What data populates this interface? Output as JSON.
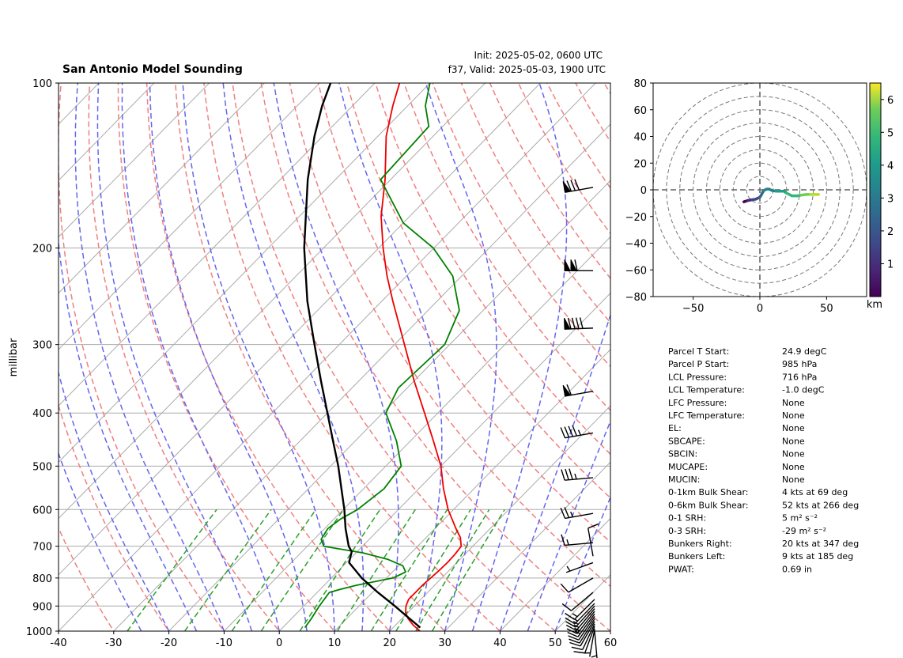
{
  "title": "San Antonio Model Sounding",
  "init": "Init: 2025-05-02, 0600 UTC",
  "valid": "f37, Valid: 2025-05-03, 1900 UTC",
  "colors": {
    "temperature": "#ee0000",
    "dewpoint": "#008000",
    "parcel": "#000000",
    "dry_adiabat": "#f08080",
    "moist_adiabat": "#6666ee",
    "mixing_ratio": "#2ca02c",
    "isotherm": "#aaaaaa",
    "zero_isotherm": "#8a2be2"
  },
  "chart_data": [
    {
      "type": "line",
      "name": "skew-t",
      "ylabel": "millibar",
      "xlim": [
        -40,
        60
      ],
      "ylim": [
        1000,
        100
      ],
      "x_ticks": [
        -40,
        -30,
        -20,
        -10,
        0,
        10,
        20,
        30,
        40,
        50,
        60
      ],
      "y_ticks": [
        1000,
        900,
        800,
        700,
        600,
        500,
        400,
        300,
        200,
        100
      ],
      "series": [
        {
          "name": "temperature",
          "points": [
            [
              1000,
              25.5
            ],
            [
              975,
              23.2
            ],
            [
              950,
              21.2
            ],
            [
              925,
              19.6
            ],
            [
              900,
              18.5
            ],
            [
              875,
              17.8
            ],
            [
              850,
              17.8
            ],
            [
              825,
              17.8
            ],
            [
              800,
              18.0
            ],
            [
              775,
              18.2
            ],
            [
              750,
              18.3
            ],
            [
              725,
              18.2
            ],
            [
              700,
              17.9
            ],
            [
              675,
              16.2
            ],
            [
              650,
              13.8
            ],
            [
              600,
              9.0
            ],
            [
              550,
              4.5
            ],
            [
              500,
              0.0
            ],
            [
              450,
              -5.8
            ],
            [
              400,
              -12.4
            ],
            [
              350,
              -19.9
            ],
            [
              300,
              -28.2
            ],
            [
              250,
              -38.0
            ],
            [
              225,
              -43.5
            ],
            [
              200,
              -49.2
            ],
            [
              175,
              -55.2
            ],
            [
              150,
              -61.0
            ],
            [
              125,
              -68.5
            ],
            [
              110,
              -72.7
            ],
            [
              100,
              -75.5
            ]
          ]
        },
        {
          "name": "dewpoint",
          "points": [
            [
              985,
              4.0
            ],
            [
              950,
              3.6
            ],
            [
              900,
              2.8
            ],
            [
              850,
              2.2
            ],
            [
              840,
              3.5
            ],
            [
              825,
              5.8
            ],
            [
              800,
              11.2
            ],
            [
              780,
              12.4
            ],
            [
              760,
              10.8
            ],
            [
              740,
              7.0
            ],
            [
              720,
              1.3
            ],
            [
              700,
              -7.0
            ],
            [
              680,
              -8.7
            ],
            [
              650,
              -9.4
            ],
            [
              625,
              -8.8
            ],
            [
              600,
              -7.4
            ],
            [
              550,
              -6.3
            ],
            [
              500,
              -7.2
            ],
            [
              450,
              -12.5
            ],
            [
              400,
              -19.4
            ],
            [
              360,
              -21.6
            ],
            [
              300,
              -20.9
            ],
            [
              260,
              -24.3
            ],
            [
              225,
              -31.6
            ],
            [
              200,
              -40.1
            ],
            [
              180,
              -50.0
            ],
            [
              150,
              -61.8
            ],
            [
              120,
              -62.5
            ],
            [
              110,
              -66.8
            ],
            [
              100,
              -70.0
            ]
          ]
        },
        {
          "name": "parcel",
          "points": [
            [
              985,
              24.9
            ],
            [
              950,
              21.5
            ],
            [
              900,
              16.5
            ],
            [
              850,
              11.0
            ],
            [
              800,
              5.5
            ],
            [
              750,
              0.5
            ],
            [
              716,
              -1.0
            ],
            [
              700,
              -2.5
            ],
            [
              650,
              -6.2
            ],
            [
              600,
              -9.8
            ],
            [
              550,
              -14.0
            ],
            [
              500,
              -18.6
            ],
            [
              450,
              -24.0
            ],
            [
              400,
              -30.0
            ],
            [
              350,
              -36.8
            ],
            [
              300,
              -44.5
            ],
            [
              250,
              -53.5
            ],
            [
              200,
              -63.5
            ],
            [
              150,
              -75.0
            ],
            [
              125,
              -81.5
            ],
            [
              110,
              -85.5
            ],
            [
              100,
              -88.0
            ]
          ]
        }
      ],
      "wind_barbs": [
        {
          "pressure": 1000,
          "dir": 175,
          "speed": 5
        },
        {
          "pressure": 990,
          "dir": 190,
          "speed": 7
        },
        {
          "pressure": 980,
          "dir": 200,
          "speed": 9
        },
        {
          "pressure": 970,
          "dir": 205,
          "speed": 10
        },
        {
          "pressure": 960,
          "dir": 210,
          "speed": 11
        },
        {
          "pressure": 950,
          "dir": 212,
          "speed": 12
        },
        {
          "pressure": 940,
          "dir": 214,
          "speed": 12
        },
        {
          "pressure": 930,
          "dir": 216,
          "speed": 13
        },
        {
          "pressure": 920,
          "dir": 218,
          "speed": 13
        },
        {
          "pressure": 910,
          "dir": 220,
          "speed": 14
        },
        {
          "pressure": 900,
          "dir": 222,
          "speed": 14
        },
        {
          "pressure": 890,
          "dir": 224,
          "speed": 14
        },
        {
          "pressure": 875,
          "dir": 225,
          "speed": 15
        },
        {
          "pressure": 850,
          "dir": 230,
          "speed": 12
        },
        {
          "pressure": 800,
          "dir": 240,
          "speed": 9
        },
        {
          "pressure": 750,
          "dir": 250,
          "speed": 7
        },
        {
          "pressure": 730,
          "dir": 350,
          "speed": 10
        },
        {
          "pressure": 690,
          "dir": 265,
          "speed": 15
        },
        {
          "pressure": 610,
          "dir": 260,
          "speed": 25
        },
        {
          "pressure": 525,
          "dir": 265,
          "speed": 35
        },
        {
          "pressure": 435,
          "dir": 260,
          "speed": 45
        },
        {
          "pressure": 365,
          "dir": 260,
          "speed": 60
        },
        {
          "pressure": 280,
          "dir": 268,
          "speed": 90
        },
        {
          "pressure": 220,
          "dir": 270,
          "speed": 110
        },
        {
          "pressure": 155,
          "dir": 260,
          "speed": 80
        }
      ]
    },
    {
      "type": "scatter",
      "name": "hodograph",
      "xlim": [
        -80,
        80
      ],
      "ylim": [
        -80,
        80
      ],
      "x_ticks": [
        -50,
        0,
        50
      ],
      "y_ticks": [
        80,
        60,
        40,
        20,
        0,
        -20,
        -40,
        -60,
        -80
      ],
      "rings": [
        10,
        20,
        30,
        40,
        50,
        60,
        70,
        80
      ],
      "colorbar_label": "km",
      "colorbar_ticks": [
        1,
        2,
        3,
        4,
        5,
        6
      ],
      "colorbar_range": [
        0,
        6.5
      ],
      "points": [
        [
          -12,
          -9,
          0.1
        ],
        [
          -9,
          -8,
          0.5
        ],
        [
          -6,
          -7.5,
          1.0
        ],
        [
          -3,
          -7,
          1.4
        ],
        [
          0,
          -5.5,
          1.8
        ],
        [
          1,
          -4,
          2.1
        ],
        [
          2,
          -2,
          2.4
        ],
        [
          3,
          -0.5,
          2.6
        ],
        [
          5,
          0.5,
          2.8
        ],
        [
          7,
          0.5,
          3.0
        ],
        [
          9,
          -0.5,
          3.1
        ],
        [
          12,
          -1,
          3.3
        ],
        [
          15,
          -1,
          3.5
        ],
        [
          18,
          -1,
          3.7
        ],
        [
          20,
          -2.5,
          3.9
        ],
        [
          24,
          -4.5,
          4.2
        ],
        [
          28,
          -4.5,
          4.5
        ],
        [
          31,
          -4,
          4.8
        ],
        [
          35,
          -3.5,
          5.1
        ],
        [
          38,
          -3.5,
          5.4
        ],
        [
          42,
          -3.5,
          5.8
        ],
        [
          44,
          -3.5,
          6.2
        ]
      ]
    }
  ],
  "parameters": [
    {
      "label": "Parcel T Start:",
      "value": "24.9 degC"
    },
    {
      "label": "Parcel P Start:",
      "value": "985 hPa"
    },
    {
      "label": "LCL Pressure:",
      "value": "716 hPa"
    },
    {
      "label": "LCL Temperature:",
      "value": "-1.0 degC"
    },
    {
      "label": "LFC Pressure:",
      "value": "None"
    },
    {
      "label": "LFC Temperature:",
      "value": "None"
    },
    {
      "label": "EL:",
      "value": "None"
    },
    {
      "label": "SBCAPE:",
      "value": "None"
    },
    {
      "label": "SBCIN:",
      "value": "None"
    },
    {
      "label": "MUCAPE:",
      "value": "None"
    },
    {
      "label": "MUCIN:",
      "value": "None"
    },
    {
      "label": "0-1km Bulk Shear:",
      "value": "4 kts at 69 deg"
    },
    {
      "label": "0-6km Bulk Shear:",
      "value": "52 kts at 266 deg"
    },
    {
      "label": "0-1 SRH:",
      "value": "5 m² s⁻²"
    },
    {
      "label": "0-3 SRH:",
      "value": "-29 m² s⁻²"
    },
    {
      "label": "Bunkers Right:",
      "value": "20 kts at 347 deg"
    },
    {
      "label": "Bunkers Left:",
      "value": "9 kts at 185 deg"
    },
    {
      "label": "PWAT:",
      "value": "0.69 in"
    }
  ]
}
